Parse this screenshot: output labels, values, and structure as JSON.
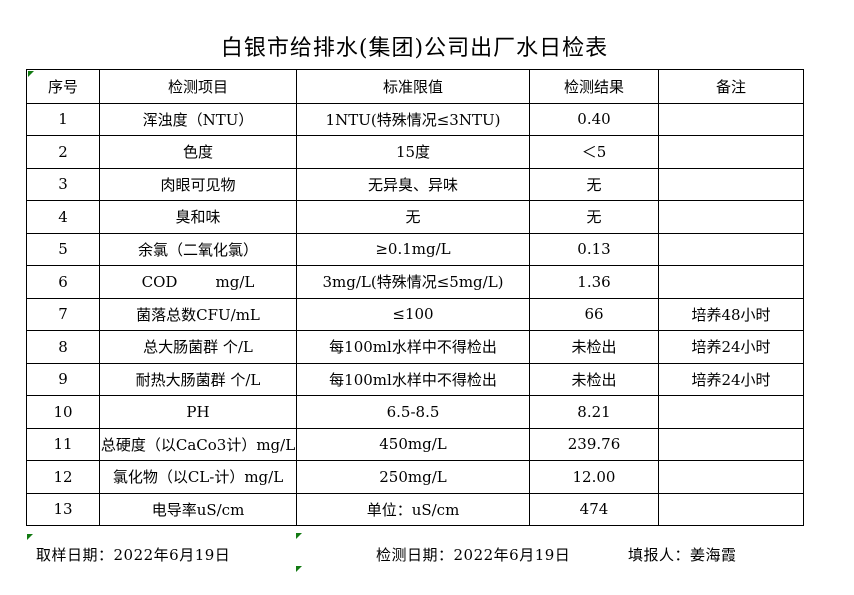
{
  "title": "白银市给排水(集团)公司出厂水日检表",
  "table": {
    "headers": [
      "序号",
      "检测项目",
      "标准限值",
      "检测结果",
      "备注"
    ],
    "rows": [
      {
        "no": "1",
        "item": "浑浊度（NTU）",
        "limit": "1NTU(特殊情况≤3NTU)",
        "result": "0.40",
        "remark": ""
      },
      {
        "no": "2",
        "item": "色度",
        "limit": "15度",
        "result": "＜5",
        "remark": ""
      },
      {
        "no": "3",
        "item": "肉眼可见物",
        "limit": "无异臭、异味",
        "result": "无",
        "remark": ""
      },
      {
        "no": "4",
        "item": "臭和味",
        "limit": "无",
        "result": "无",
        "remark": ""
      },
      {
        "no": "5",
        "item": "余氯（二氧化氯）",
        "limit": "≥0.1mg/L",
        "result": "0.13",
        "remark": ""
      },
      {
        "no": "6",
        "item": "COD        mg/L",
        "limit": "3mg/L(特殊情况≤5mg/L)",
        "result": "1.36",
        "remark": ""
      },
      {
        "no": "7",
        "item": "菌落总数CFU/mL",
        "limit": "≤100",
        "result": "66",
        "remark": "培养48小时"
      },
      {
        "no": "8",
        "item": "总大肠菌群 个/L",
        "limit": "每100ml水样中不得检出",
        "result": "未检出",
        "remark": "培养24小时"
      },
      {
        "no": "9",
        "item": "耐热大肠菌群 个/L",
        "limit": "每100ml水样中不得检出",
        "result": "未检出",
        "remark": "培养24小时"
      },
      {
        "no": "10",
        "item": "PH",
        "limit": "6.5-8.5",
        "result": "8.21",
        "remark": ""
      },
      {
        "no": "11",
        "item": "总硬度（以CaCo3计）mg/L",
        "limit": "450mg/L",
        "result": "239.76",
        "remark": ""
      },
      {
        "no": "12",
        "item": "氯化物（以CL-计）mg/L",
        "limit": "250mg/L",
        "result": "12.00",
        "remark": ""
      },
      {
        "no": "13",
        "item": "电导率uS/cm",
        "limit": "单位：uS/cm",
        "result": "474",
        "remark": ""
      }
    ]
  },
  "footer": {
    "sample_date": "取样日期：2022年6月19日",
    "test_date": "检测日期：2022年6月19日",
    "filler": "填报人：姜海霞"
  },
  "colors": {
    "border": "#000000",
    "error_indicator_green": "#127a12",
    "background": "#ffffff"
  }
}
